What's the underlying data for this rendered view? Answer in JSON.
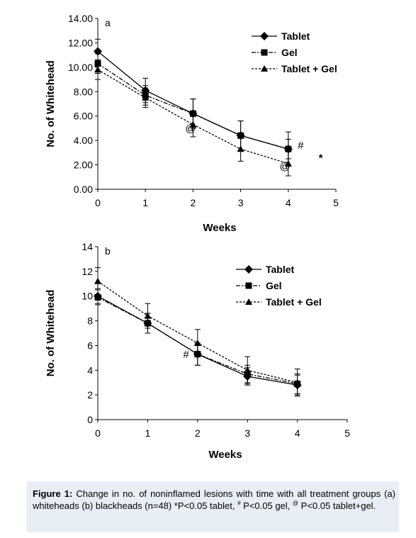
{
  "chart_data": [
    {
      "panel": "a",
      "type": "line",
      "xlabel": "Weeks",
      "ylabel": "No. of Whitehead",
      "x": [
        0,
        1,
        2,
        3,
        4
      ],
      "xlim": [
        0,
        5
      ],
      "xticks": [
        "0",
        "1",
        "2",
        "3",
        "4",
        "5"
      ],
      "ylim": [
        0,
        14
      ],
      "yticks": [
        "0.00",
        "2.00",
        "4.00",
        "6.00",
        "8.00",
        "10.00",
        "12.00",
        "14.00"
      ],
      "series": [
        {
          "name": "Tablet",
          "marker": "diamond",
          "dash": "solid",
          "values": [
            11.3,
            8.1,
            6.2,
            4.4,
            3.3
          ],
          "errors": [
            1.0,
            1.0,
            1.2,
            1.2,
            1.4
          ]
        },
        {
          "name": "Gel",
          "marker": "square",
          "dash": "dashdot",
          "values": [
            10.3,
            7.7,
            6.2,
            4.4,
            3.3
          ],
          "errors": [
            0.8,
            0.8,
            1.2,
            1.2,
            0.8
          ]
        },
        {
          "name": "Tablet + Gel",
          "marker": "triangle",
          "dash": "dashed",
          "values": [
            9.8,
            7.5,
            5.3,
            3.3,
            2.1
          ],
          "errors": [
            0.8,
            0.8,
            1.0,
            1.0,
            1.0
          ]
        }
      ],
      "annotations": [
        {
          "text": "@",
          "x": 1.95,
          "y": 4.7
        },
        {
          "text": "@",
          "x": 3.93,
          "y": 1.6
        },
        {
          "text": "#",
          "x": 4.26,
          "y": 3.3
        },
        {
          "text": "*",
          "x": 4.68,
          "y": 3.0
        }
      ]
    },
    {
      "panel": "b",
      "type": "line",
      "xlabel": "Weeks",
      "ylabel": "No. of Whitehead",
      "x": [
        0,
        1,
        2,
        3,
        4
      ],
      "xlim": [
        0,
        5
      ],
      "xticks": [
        "0",
        "1",
        "2",
        "3",
        "4",
        "5"
      ],
      "ylim": [
        0,
        14
      ],
      "yticks": [
        "0",
        "2",
        "4",
        "6",
        "8",
        "10",
        "12",
        "14"
      ],
      "series": [
        {
          "name": "Tablet",
          "marker": "diamond",
          "dash": "solid",
          "values": [
            10.0,
            7.8,
            5.3,
            3.5,
            2.8
          ],
          "errors": [
            0.6,
            0.8,
            0.9,
            0.7,
            0.8
          ]
        },
        {
          "name": "Gel",
          "marker": "square",
          "dash": "dashdot",
          "values": [
            9.9,
            7.8,
            5.3,
            3.7,
            2.9
          ],
          "errors": [
            0.6,
            0.8,
            0.9,
            0.7,
            0.8
          ]
        },
        {
          "name": "Tablet + Gel",
          "marker": "triangle",
          "dash": "dashed",
          "values": [
            11.2,
            8.4,
            6.2,
            4.0,
            3.0
          ],
          "errors": [
            1.1,
            1.0,
            1.1,
            1.1,
            1.1
          ]
        }
      ],
      "annotations": [
        {
          "text": "#",
          "x": 1.77,
          "y": 5.0
        }
      ]
    }
  ],
  "caption": {
    "label": "Figure 1:",
    "text": " Change in no. of noninflamed lesions with time with all treatment groups (a) whiteheads (b) blackheads (n=48) *P<0.05 tablet, ",
    "sup1": "#",
    "text2": " P<0.05 gel, ",
    "sup2": "@",
    "text3": " P<0.05 tablet+gel."
  }
}
